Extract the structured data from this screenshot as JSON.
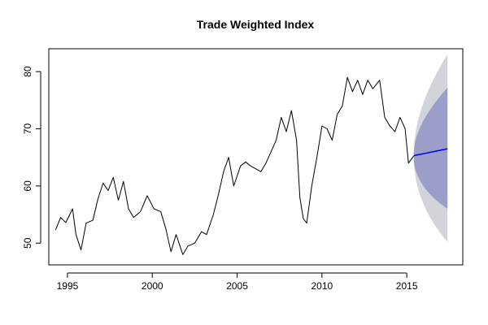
{
  "chart_data": {
    "type": "line",
    "title": "Trade Weighted Index",
    "xlabel": "",
    "ylabel": "",
    "xlim": [
      1993.9,
      2018.3
    ],
    "ylim": [
      46.2,
      84.0
    ],
    "x_ticks": [
      1995,
      2000,
      2005,
      2010,
      2015
    ],
    "y_ticks": [
      50,
      60,
      70,
      80
    ],
    "grid": false,
    "legend": null,
    "colors": {
      "history": "#000000",
      "forecast": "#0000ff",
      "band80": "#9b9ec9",
      "band95": "#d3d3da"
    },
    "history": {
      "x": [
        1994.3,
        1994.6,
        1994.9,
        1995.3,
        1995.5,
        1995.8,
        1996.1,
        1996.5,
        1996.8,
        1997.1,
        1997.4,
        1997.7,
        1998.0,
        1998.3,
        1998.6,
        1998.9,
        1999.3,
        1999.7,
        2000.1,
        2000.5,
        2000.8,
        2001.1,
        2001.4,
        2001.8,
        2002.1,
        2002.5,
        2002.9,
        2003.2,
        2003.6,
        2003.9,
        2004.2,
        2004.5,
        2004.8,
        2005.2,
        2005.5,
        2005.8,
        2006.1,
        2006.4,
        2006.7,
        2007.0,
        2007.3,
        2007.6,
        2007.9,
        2008.2,
        2008.5,
        2008.7,
        2008.9,
        2009.1,
        2009.4,
        2009.7,
        2010.0,
        2010.3,
        2010.6,
        2010.9,
        2011.2,
        2011.5,
        2011.8,
        2012.1,
        2012.4,
        2012.7,
        2013.0,
        2013.4,
        2013.7,
        2014.0,
        2014.3,
        2014.6,
        2014.9,
        2015.1,
        2015.4
      ],
      "values": [
        52.3,
        54.5,
        53.6,
        56.0,
        51.5,
        48.8,
        53.5,
        54.0,
        57.8,
        60.5,
        59.2,
        61.5,
        57.5,
        60.8,
        56.0,
        54.5,
        55.5,
        58.3,
        56.0,
        55.5,
        52.5,
        48.5,
        51.5,
        48.0,
        49.5,
        50.0,
        52.0,
        51.5,
        55.0,
        58.5,
        62.5,
        65.0,
        60.0,
        63.5,
        64.2,
        63.5,
        63.0,
        62.5,
        64.0,
        66.0,
        68.0,
        72.0,
        69.5,
        73.2,
        68.0,
        58.0,
        54.3,
        53.5,
        60.0,
        65.0,
        70.5,
        70.0,
        68.0,
        72.5,
        74.0,
        79.0,
        76.5,
        78.5,
        76.0,
        78.5,
        77.0,
        78.5,
        72.0,
        70.5,
        69.5,
        72.0,
        70.0,
        64.0,
        65.2
      ]
    },
    "forecast": {
      "x": [
        2015.4,
        2017.4
      ],
      "mean": [
        65.3,
        66.5
      ],
      "lower80": [
        65.3,
        56.0
      ],
      "upper80": [
        65.3,
        77.2
      ],
      "lower95": [
        65.3,
        50.2
      ],
      "upper95": [
        65.3,
        83.0
      ]
    }
  }
}
